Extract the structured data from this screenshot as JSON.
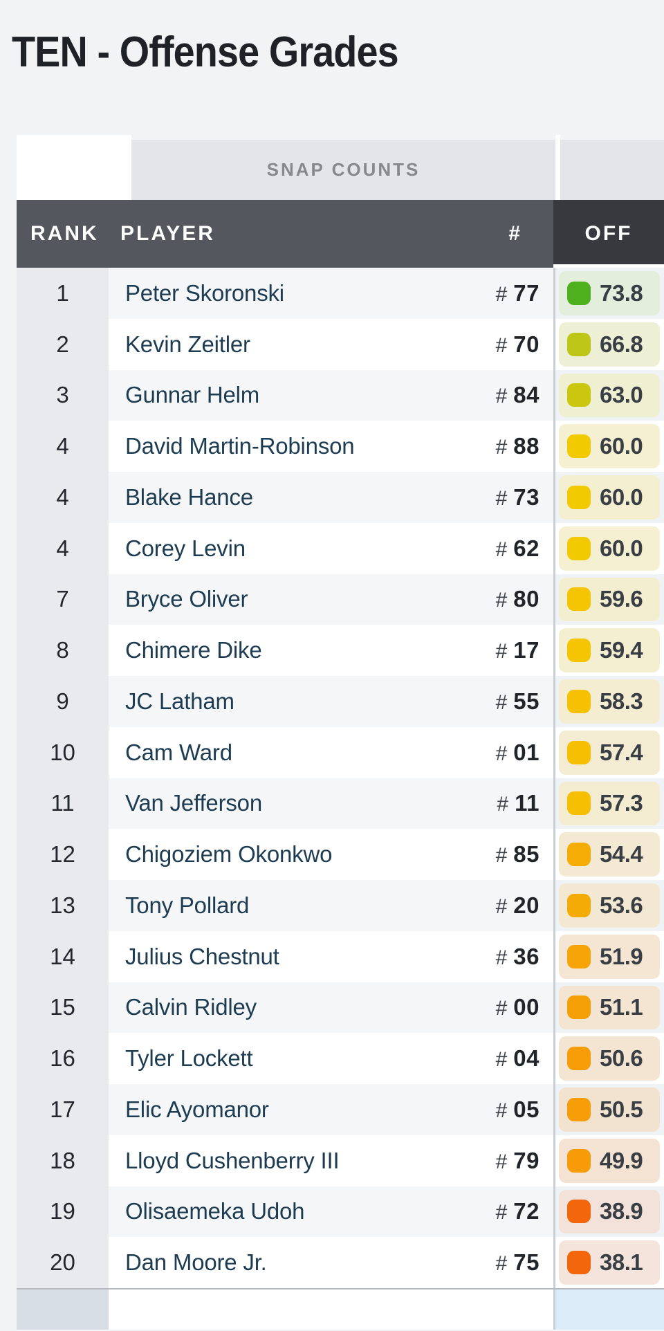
{
  "page": {
    "title": "TEN - Offense Grades"
  },
  "table": {
    "group_header": "SNAP COUNTS",
    "columns": {
      "rank": "RANK",
      "player": "PLAYER",
      "jersey": "#",
      "off": "OFF"
    },
    "jersey_prefix": "#",
    "sorted_column": "OFF",
    "rows": [
      {
        "rank": "1",
        "player": "Peter Skoronski",
        "jersey": "77",
        "off": "73.8",
        "chip": "#4fb01e",
        "tint": "#e3eedd"
      },
      {
        "rank": "2",
        "player": "Kevin Zeitler",
        "jersey": "70",
        "off": "66.8",
        "chip": "#bec717",
        "tint": "#eef0d5"
      },
      {
        "rank": "3",
        "player": "Gunnar Helm",
        "jersey": "84",
        "off": "63.0",
        "chip": "#cbc70f",
        "tint": "#efefd2"
      },
      {
        "rank": "4",
        "player": "David Martin-Robinson",
        "jersey": "88",
        "off": "60.0",
        "chip": "#f2ca02",
        "tint": "#f5f0d2"
      },
      {
        "rank": "4",
        "player": "Blake Hance",
        "jersey": "73",
        "off": "60.0",
        "chip": "#f2ca02",
        "tint": "#f4efd1"
      },
      {
        "rank": "4",
        "player": "Corey Levin",
        "jersey": "62",
        "off": "60.0",
        "chip": "#f2ca02",
        "tint": "#f5f0d2"
      },
      {
        "rank": "7",
        "player": "Bryce Oliver",
        "jersey": "80",
        "off": "59.6",
        "chip": "#f5c402",
        "tint": "#f4eed1"
      },
      {
        "rank": "8",
        "player": "Chimere Dike",
        "jersey": "17",
        "off": "59.4",
        "chip": "#f5c402",
        "tint": "#f5efd2"
      },
      {
        "rank": "9",
        "player": "JC Latham",
        "jersey": "55",
        "off": "58.3",
        "chip": "#f5c102",
        "tint": "#f4edd1"
      },
      {
        "rank": "10",
        "player": "Cam Ward",
        "jersey": "01",
        "off": "57.4",
        "chip": "#f5bf03",
        "tint": "#f4ecd2"
      },
      {
        "rank": "11",
        "player": "Van Jefferson",
        "jersey": "11",
        "off": "57.3",
        "chip": "#f5bf03",
        "tint": "#f3ecd1"
      },
      {
        "rank": "12",
        "player": "Chigoziem Okonkwo",
        "jersey": "85",
        "off": "54.4",
        "chip": "#f5ad05",
        "tint": "#f4e9d2"
      },
      {
        "rank": "13",
        "player": "Tony Pollard",
        "jersey": "20",
        "off": "53.6",
        "chip": "#f5ab06",
        "tint": "#f3e8d1"
      },
      {
        "rank": "14",
        "player": "Julius Chestnut",
        "jersey": "36",
        "off": "51.9",
        "chip": "#f6a408",
        "tint": "#f4e6d2"
      },
      {
        "rank": "15",
        "player": "Calvin Ridley",
        "jersey": "00",
        "off": "51.1",
        "chip": "#f6a008",
        "tint": "#f3e5d1"
      },
      {
        "rank": "16",
        "player": "Tyler Lockett",
        "jersey": "04",
        "off": "50.6",
        "chip": "#f69d08",
        "tint": "#f4e4d2"
      },
      {
        "rank": "17",
        "player": "Elic Ayomanor",
        "jersey": "05",
        "off": "50.5",
        "chip": "#f69d08",
        "tint": "#f2e3d0"
      },
      {
        "rank": "18",
        "player": "Lloyd Cushenberry III",
        "jersey": "79",
        "off": "49.9",
        "chip": "#f79b09",
        "tint": "#f4e3d3"
      },
      {
        "rank": "19",
        "player": "Olisaemeka Udoh",
        "jersey": "72",
        "off": "38.9",
        "chip": "#f3660b",
        "tint": "#f2e2da"
      },
      {
        "rank": "20",
        "player": "Dan Moore Jr.",
        "jersey": "75",
        "off": "38.1",
        "chip": "#f3660b",
        "tint": "#f4e4dc"
      }
    ]
  },
  "colors": {
    "page_bg": "#f2f3f4",
    "header_bg": "#54575d",
    "header_sorted_bg": "#37393f",
    "group_header_bg": "#e3e5e9",
    "rank_col_bg": "#e8eaed",
    "odd_row_bg": "#f5f6f8",
    "player_text": "#1d3c52",
    "footer_rank_bg": "#d7dde4",
    "footer_off_bg": "#dcecf9",
    "column_divider": "#c9ced3"
  }
}
